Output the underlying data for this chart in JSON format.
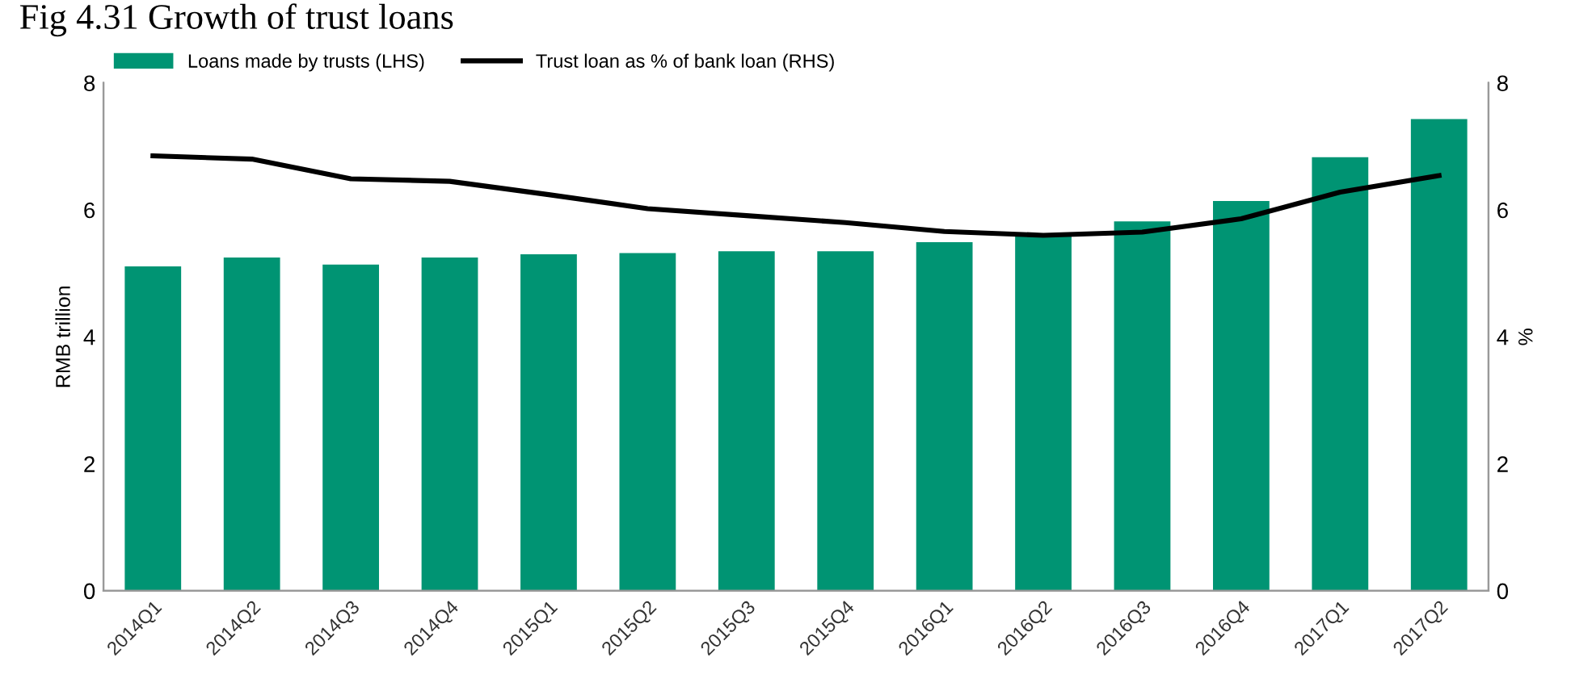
{
  "chart_data": {
    "type": "bar",
    "title": "Fig 4.31 Growth of trust loans",
    "ylabel": "RMB trillion",
    "y2label": "%",
    "categories": [
      "2014Q1",
      "2014Q2",
      "2014Q3",
      "2014Q4",
      "2015Q1",
      "2015Q2",
      "2015Q3",
      "2015Q4",
      "2016Q1",
      "2016Q2",
      "2016Q3",
      "2016Q4",
      "2017Q1",
      "2017Q2"
    ],
    "series": [
      {
        "name": "Loans made by trusts (LHS)",
        "color": "#009473",
        "values": [
          5.11,
          5.25,
          5.14,
          5.25,
          5.3,
          5.32,
          5.35,
          5.35,
          5.49,
          5.58,
          5.82,
          6.14,
          6.83,
          7.43
        ]
      },
      {
        "name": "Trust loan as % of bank loan (RHS)",
        "type": "line",
        "axis": "y2",
        "color": "#000000",
        "values": [
          6.85,
          6.8,
          6.49,
          6.45,
          6.24,
          6.02,
          5.91,
          5.8,
          5.66,
          5.6,
          5.65,
          5.86,
          6.28,
          6.54
        ]
      }
    ],
    "ylim": [
      0,
      8
    ],
    "yticks": [
      0,
      2,
      4,
      6,
      8
    ],
    "y2lim": [
      0,
      8
    ],
    "y2ticks": [
      0,
      2,
      4,
      6,
      8
    ],
    "grid": false,
    "legend": "top left",
    "marker": "none",
    "line_style": "solid"
  }
}
